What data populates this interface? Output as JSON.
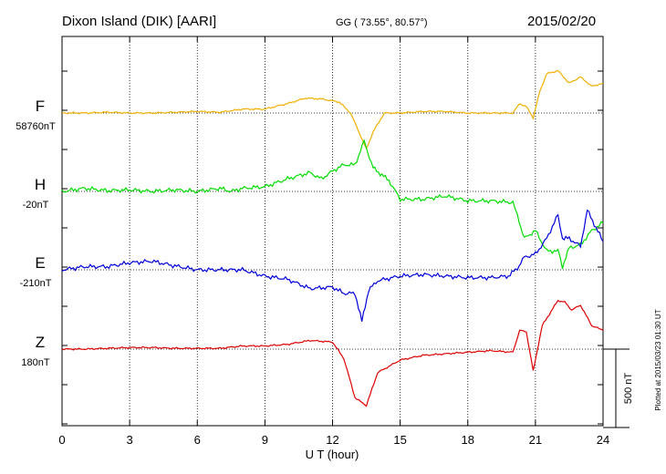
{
  "header": {
    "station": "Dixon Island (DIK)  [AARI]",
    "coords": "GG ( 73.55°,  80.57°)",
    "date": "2015/02/20"
  },
  "footer": {
    "plotted": "Plotted at 2015/03/23 01:30 UT"
  },
  "scale_bar": {
    "label": "500 nT",
    "value": 500
  },
  "chart_data": {
    "type": "line",
    "xlabel": "U T (hour)",
    "xlim": [
      0,
      24
    ],
    "x_ticks": [
      0,
      3,
      6,
      9,
      12,
      15,
      18,
      21,
      24
    ],
    "x_tick_labels": [
      "0",
      "3",
      "6",
      "9",
      "12",
      "15",
      "18",
      "21",
      "24"
    ],
    "grid": true,
    "series": [
      {
        "name": "F",
        "baseline_label": "58760nT",
        "color": "#f0b000",
        "x": [
          0,
          1,
          2,
          3,
          4,
          5,
          6,
          7,
          8,
          9,
          10,
          10.8,
          11.5,
          12.3,
          12.8,
          13.2,
          13.5,
          13.8,
          14.3,
          15,
          16,
          17,
          18,
          19,
          20,
          20.3,
          20.6,
          20.9,
          21.2,
          21.5,
          22,
          22.5,
          23,
          23.5,
          24
        ],
        "y": [
          0,
          0,
          5,
          0,
          0,
          5,
          10,
          5,
          25,
          25,
          60,
          95,
          90,
          70,
          0,
          -130,
          -230,
          -120,
          0,
          0,
          10,
          10,
          0,
          0,
          0,
          60,
          40,
          -30,
          140,
          250,
          270,
          190,
          230,
          170,
          190
        ]
      },
      {
        "name": "H",
        "baseline_label": "-20nT",
        "color": "#00dd00",
        "x": [
          0,
          1,
          2,
          3,
          4,
          5,
          6,
          7,
          7.5,
          8,
          9,
          10,
          11,
          11.5,
          12,
          12.5,
          13,
          13.4,
          13.8,
          14.5,
          15,
          16,
          17,
          18,
          19,
          20,
          20.2,
          20.5,
          21,
          21.5,
          22,
          22.2,
          22.5,
          23,
          23.5,
          24
        ],
        "y": [
          0,
          20,
          5,
          10,
          0,
          10,
          0,
          20,
          0,
          20,
          30,
          80,
          120,
          80,
          130,
          170,
          170,
          320,
          150,
          70,
          -50,
          -50,
          -30,
          -60,
          -60,
          -70,
          -150,
          -300,
          -250,
          -380,
          -380,
          -480,
          -360,
          -340,
          -250,
          -200
        ]
      },
      {
        "name": "E",
        "baseline_label": "-210nT",
        "color": "#0000dd",
        "x": [
          0,
          1,
          2,
          3,
          4,
          5,
          6,
          7,
          8,
          9,
          10,
          11,
          12,
          12.5,
          13,
          13.3,
          13.6,
          14,
          15,
          16,
          17,
          18,
          19,
          19.8,
          20.2,
          20.5,
          21,
          21.5,
          22,
          22.2,
          22.5,
          23,
          23.3,
          24
        ],
        "y": [
          0,
          20,
          20,
          45,
          55,
          25,
          0,
          0,
          0,
          -40,
          -60,
          -120,
          -110,
          -150,
          -150,
          -330,
          -130,
          -70,
          -40,
          -30,
          -40,
          -50,
          -50,
          -40,
          10,
          80,
          100,
          200,
          350,
          200,
          200,
          150,
          380,
          180
        ]
      },
      {
        "name": "Z",
        "baseline_label": "180nT",
        "color": "#dd0000",
        "x": [
          0,
          1,
          2,
          3,
          4,
          5,
          6,
          7,
          8,
          9,
          10,
          11,
          12,
          12.5,
          13,
          13.5,
          14,
          15,
          16,
          17,
          18,
          19,
          20,
          20.3,
          20.6,
          20.9,
          21.3,
          22,
          22.3,
          22.6,
          23,
          23.5,
          24
        ],
        "y": [
          0,
          0,
          5,
          10,
          10,
          5,
          5,
          5,
          20,
          20,
          30,
          55,
          45,
          -60,
          -310,
          -360,
          -150,
          -70,
          -40,
          -30,
          -20,
          -10,
          -20,
          120,
          110,
          -140,
          150,
          310,
          300,
          250,
          280,
          150,
          120
        ]
      }
    ]
  }
}
